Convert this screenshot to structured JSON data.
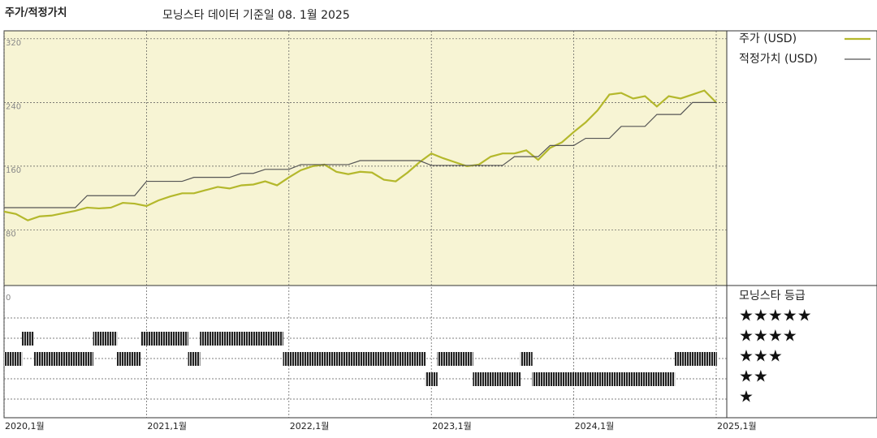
{
  "chart_data": [
    {
      "type": "line",
      "title": "주가/적정가치",
      "subtitle": "모닝스타 데이터 기준일 08. 1월 2025",
      "x": [
        "2020-01",
        "2020-02",
        "2020-03",
        "2020-04",
        "2020-05",
        "2020-06",
        "2020-07",
        "2020-08",
        "2020-09",
        "2020-10",
        "2020-11",
        "2020-12",
        "2021-01",
        "2021-02",
        "2021-03",
        "2021-04",
        "2021-05",
        "2021-06",
        "2021-07",
        "2021-08",
        "2021-09",
        "2021-10",
        "2021-11",
        "2021-12",
        "2022-01",
        "2022-02",
        "2022-03",
        "2022-04",
        "2022-05",
        "2022-06",
        "2022-07",
        "2022-08",
        "2022-09",
        "2022-10",
        "2022-11",
        "2022-12",
        "2023-01",
        "2023-02",
        "2023-03",
        "2023-04",
        "2023-05",
        "2023-06",
        "2023-07",
        "2023-08",
        "2023-09",
        "2023-10",
        "2023-11",
        "2023-12",
        "2024-01",
        "2024-02",
        "2024-03",
        "2024-04",
        "2024-05",
        "2024-06",
        "2024-07",
        "2024-08",
        "2024-09",
        "2024-10",
        "2024-11",
        "2024-12",
        "2025-01"
      ],
      "series": [
        {
          "name": "주가 (USD)",
          "color": "#b4b82c",
          "values": [
            103,
            100,
            92,
            97,
            98,
            101,
            104,
            108,
            107,
            108,
            114,
            113,
            110,
            117,
            122,
            126,
            126,
            130,
            134,
            132,
            136,
            137,
            141,
            136,
            146,
            155,
            160,
            162,
            153,
            150,
            153,
            152,
            143,
            141,
            152,
            165,
            176,
            170,
            165,
            160,
            162,
            172,
            176,
            176,
            180,
            168,
            183,
            190,
            203,
            215,
            230,
            250,
            252,
            245,
            248,
            235,
            248,
            245,
            250,
            255,
            240
          ]
        },
        {
          "name": "적정가치 (USD)",
          "color": "#555555",
          "values": [
            108,
            108,
            108,
            108,
            108,
            108,
            108,
            123,
            123,
            123,
            123,
            123,
            141,
            141,
            141,
            141,
            146,
            146,
            146,
            146,
            151,
            151,
            156,
            156,
            156,
            162,
            162,
            162,
            162,
            162,
            167,
            167,
            167,
            167,
            167,
            167,
            161,
            161,
            161,
            161,
            161,
            161,
            161,
            172,
            172,
            172,
            186,
            186,
            186,
            195,
            195,
            195,
            210,
            210,
            210,
            225,
            225,
            225,
            240,
            240,
            240
          ]
        }
      ],
      "ylim": [
        0,
        330
      ],
      "yticks": [
        0,
        80,
        160,
        240,
        320
      ],
      "grid": true,
      "xticks": [
        {
          "value": "2020-01",
          "label": "2020,1월"
        },
        {
          "value": "2021-01",
          "label": "2021,1월"
        },
        {
          "value": "2022-01",
          "label": "2022,1월"
        },
        {
          "value": "2023-01",
          "label": "2023,1월"
        },
        {
          "value": "2024-01",
          "label": "2024,1월"
        },
        {
          "value": "2025-01",
          "label": "2025,1월"
        }
      ]
    },
    {
      "type": "rating",
      "title": "모닝스타 등급",
      "color": "#222222",
      "values": [
        3,
        3,
        4,
        3,
        3,
        3,
        3,
        3,
        4,
        4,
        3,
        3,
        4,
        4,
        4,
        4,
        3,
        4,
        4,
        4,
        4,
        4,
        4,
        4,
        3,
        3,
        3,
        3,
        3,
        3,
        3,
        3,
        3,
        3,
        3,
        3,
        2,
        3,
        3,
        3,
        2,
        2,
        2,
        2,
        3,
        2,
        2,
        2,
        2,
        2,
        2,
        2,
        2,
        2,
        2,
        2,
        2,
        3,
        3,
        3,
        3
      ],
      "ylim": [
        0,
        6
      ],
      "yticks": [
        {
          "value": 5,
          "label": "★★★★★"
        },
        {
          "value": 4,
          "label": "★★★★"
        },
        {
          "value": 3,
          "label": "★★★"
        },
        {
          "value": 2,
          "label": "★★"
        },
        {
          "value": 1,
          "label": "★"
        }
      ]
    }
  ]
}
